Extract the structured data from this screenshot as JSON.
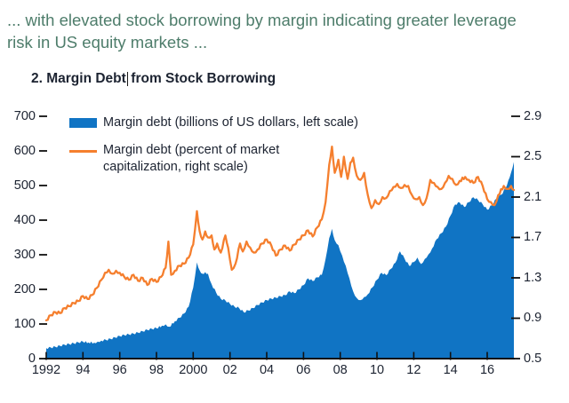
{
  "header": {
    "note_line1": "... with elevated stock borrowing by margin indicating greater leverage",
    "note_line2": "risk in US equity markets ..."
  },
  "figure": {
    "title_part1": "2. Margin Debt",
    "title_part2": "from Stock Borrowing"
  },
  "legend": {
    "items": [
      {
        "label": "Margin debt (billions of US dollars, left scale)",
        "swatch": "area",
        "color": "#1074c4"
      },
      {
        "label_line1": "Margin debt (percent of market",
        "label_line2": "capitalization, right scale)",
        "swatch": "line",
        "color": "#f57f2e"
      }
    ]
  },
  "colors": {
    "area_blue": "#1074c4",
    "line_orange": "#f57f2e",
    "axis_black": "#111111",
    "text_dark": "#1c2331",
    "note_green": "#4e7d6b"
  },
  "chart_data": {
    "type": "combo",
    "title": "2. Margin Debt from Stock Borrowing",
    "grid": "off",
    "legend_position": "top-left-inside",
    "x_axis": {
      "range": [
        1992,
        2017.45
      ],
      "tick_years": [
        1992,
        1994,
        1996,
        1998,
        2000,
        2002,
        2004,
        2006,
        2008,
        2010,
        2012,
        2014,
        2016
      ],
      "tick_labels": [
        "1992",
        "94",
        "96",
        "98",
        "2000",
        "02",
        "04",
        "06",
        "08",
        "10",
        "12",
        "14",
        "16"
      ]
    },
    "left_axis": {
      "range": [
        0,
        700
      ],
      "ticks": [
        0,
        100,
        200,
        300,
        400,
        500,
        600,
        700
      ]
    },
    "right_axis": {
      "range": [
        0.5,
        2.9
      ],
      "ticks": [
        0.5,
        0.9,
        1.3,
        1.7,
        2.1,
        2.5,
        2.9
      ]
    },
    "series": [
      {
        "name": "Margin debt (billions of US dollars, left scale)",
        "type": "area",
        "axis": "left",
        "color": "#1074c4",
        "points": [
          [
            1992.0,
            30
          ],
          [
            1992.25,
            32
          ],
          [
            1992.5,
            34
          ],
          [
            1992.75,
            37
          ],
          [
            1993.0,
            40
          ],
          [
            1993.25,
            42
          ],
          [
            1993.5,
            44
          ],
          [
            1993.75,
            47
          ],
          [
            1994.0,
            49
          ],
          [
            1994.3,
            47
          ],
          [
            1994.6,
            46
          ],
          [
            1994.8,
            49
          ],
          [
            1995.0,
            52
          ],
          [
            1995.25,
            54
          ],
          [
            1995.5,
            57
          ],
          [
            1995.75,
            61
          ],
          [
            1996.0,
            65
          ],
          [
            1996.25,
            68
          ],
          [
            1996.5,
            70
          ],
          [
            1996.75,
            72
          ],
          [
            1997.0,
            75
          ],
          [
            1997.25,
            79
          ],
          [
            1997.5,
            83
          ],
          [
            1997.75,
            86
          ],
          [
            1998.0,
            88
          ],
          [
            1998.3,
            95
          ],
          [
            1998.5,
            99
          ],
          [
            1998.7,
            92
          ],
          [
            1999.0,
            108
          ],
          [
            1999.25,
            118
          ],
          [
            1999.5,
            130
          ],
          [
            1999.75,
            150
          ],
          [
            2000.0,
            205
          ],
          [
            2000.2,
            278
          ],
          [
            2000.35,
            255
          ],
          [
            2000.5,
            245
          ],
          [
            2000.65,
            250
          ],
          [
            2000.8,
            245
          ],
          [
            2001.0,
            215
          ],
          [
            2001.25,
            190
          ],
          [
            2001.5,
            173
          ],
          [
            2001.75,
            168
          ],
          [
            2002.0,
            158
          ],
          [
            2002.25,
            150
          ],
          [
            2002.5,
            146
          ],
          [
            2002.75,
            134
          ],
          [
            2003.0,
            139
          ],
          [
            2003.25,
            146
          ],
          [
            2003.5,
            155
          ],
          [
            2003.75,
            162
          ],
          [
            2004.0,
            169
          ],
          [
            2004.25,
            173
          ],
          [
            2004.5,
            176
          ],
          [
            2004.75,
            180
          ],
          [
            2005.0,
            183
          ],
          [
            2005.25,
            194
          ],
          [
            2005.5,
            189
          ],
          [
            2005.75,
            200
          ],
          [
            2006.0,
            212
          ],
          [
            2006.25,
            232
          ],
          [
            2006.5,
            224
          ],
          [
            2006.75,
            235
          ],
          [
            2007.0,
            242
          ],
          [
            2007.2,
            288
          ],
          [
            2007.4,
            348
          ],
          [
            2007.55,
            375
          ],
          [
            2007.7,
            342
          ],
          [
            2007.9,
            328
          ],
          [
            2008.1,
            298
          ],
          [
            2008.3,
            268
          ],
          [
            2008.5,
            232
          ],
          [
            2008.7,
            194
          ],
          [
            2008.9,
            175
          ],
          [
            2009.1,
            169
          ],
          [
            2009.3,
            178
          ],
          [
            2009.5,
            186
          ],
          [
            2009.75,
            206
          ],
          [
            2010.0,
            228
          ],
          [
            2010.25,
            248
          ],
          [
            2010.5,
            241
          ],
          [
            2010.75,
            259
          ],
          [
            2011.0,
            277
          ],
          [
            2011.25,
            310
          ],
          [
            2011.5,
            289
          ],
          [
            2011.75,
            268
          ],
          [
            2012.0,
            279
          ],
          [
            2012.2,
            292
          ],
          [
            2012.4,
            273
          ],
          [
            2012.6,
            288
          ],
          [
            2012.8,
            301
          ],
          [
            2013.0,
            318
          ],
          [
            2013.25,
            345
          ],
          [
            2013.5,
            362
          ],
          [
            2013.75,
            381
          ],
          [
            2014.0,
            413
          ],
          [
            2014.25,
            445
          ],
          [
            2014.5,
            451
          ],
          [
            2014.75,
            438
          ],
          [
            2015.0,
            452
          ],
          [
            2015.25,
            466
          ],
          [
            2015.5,
            458
          ],
          [
            2015.75,
            446
          ],
          [
            2016.0,
            430
          ],
          [
            2016.25,
            443
          ],
          [
            2016.5,
            462
          ],
          [
            2016.75,
            473
          ],
          [
            2017.0,
            492
          ],
          [
            2017.15,
            515
          ],
          [
            2017.3,
            538
          ],
          [
            2017.45,
            568
          ]
        ]
      },
      {
        "name": "Margin debt (percent of market capitalization, right scale)",
        "type": "line",
        "axis": "right",
        "color": "#f57f2e",
        "points": [
          [
            1992.0,
            0.88
          ],
          [
            1992.25,
            0.93
          ],
          [
            1992.5,
            0.96
          ],
          [
            1992.75,
            0.95
          ],
          [
            1993.0,
            1.0
          ],
          [
            1993.25,
            1.02
          ],
          [
            1993.5,
            1.05
          ],
          [
            1993.75,
            1.07
          ],
          [
            1994.0,
            1.12
          ],
          [
            1994.25,
            1.09
          ],
          [
            1994.5,
            1.13
          ],
          [
            1994.75,
            1.2
          ],
          [
            1995.0,
            1.28
          ],
          [
            1995.2,
            1.35
          ],
          [
            1995.4,
            1.38
          ],
          [
            1995.6,
            1.34
          ],
          [
            1995.8,
            1.37
          ],
          [
            1996.0,
            1.35
          ],
          [
            1996.25,
            1.31
          ],
          [
            1996.5,
            1.28
          ],
          [
            1996.75,
            1.33
          ],
          [
            1997.0,
            1.27
          ],
          [
            1997.25,
            1.3
          ],
          [
            1997.5,
            1.23
          ],
          [
            1997.75,
            1.29
          ],
          [
            1998.0,
            1.26
          ],
          [
            1998.25,
            1.31
          ],
          [
            1998.5,
            1.4
          ],
          [
            1998.65,
            1.66
          ],
          [
            1998.8,
            1.33
          ],
          [
            1999.0,
            1.37
          ],
          [
            1999.25,
            1.42
          ],
          [
            1999.5,
            1.44
          ],
          [
            1999.75,
            1.5
          ],
          [
            2000.0,
            1.63
          ],
          [
            2000.2,
            1.96
          ],
          [
            2000.35,
            1.76
          ],
          [
            2000.5,
            1.68
          ],
          [
            2000.65,
            1.76
          ],
          [
            2000.8,
            1.7
          ],
          [
            2001.0,
            1.72
          ],
          [
            2001.15,
            1.58
          ],
          [
            2001.3,
            1.64
          ],
          [
            2001.5,
            1.55
          ],
          [
            2001.75,
            1.72
          ],
          [
            2001.9,
            1.6
          ],
          [
            2002.1,
            1.38
          ],
          [
            2002.3,
            1.44
          ],
          [
            2002.55,
            1.64
          ],
          [
            2002.7,
            1.56
          ],
          [
            2002.9,
            1.66
          ],
          [
            2003.1,
            1.6
          ],
          [
            2003.3,
            1.55
          ],
          [
            2003.5,
            1.58
          ],
          [
            2003.75,
            1.64
          ],
          [
            2004.0,
            1.68
          ],
          [
            2004.25,
            1.62
          ],
          [
            2004.5,
            1.52
          ],
          [
            2004.75,
            1.58
          ],
          [
            2005.0,
            1.62
          ],
          [
            2005.25,
            1.57
          ],
          [
            2005.5,
            1.63
          ],
          [
            2005.75,
            1.68
          ],
          [
            2006.0,
            1.72
          ],
          [
            2006.25,
            1.77
          ],
          [
            2006.5,
            1.71
          ],
          [
            2006.75,
            1.8
          ],
          [
            2007.0,
            1.88
          ],
          [
            2007.2,
            2.05
          ],
          [
            2007.4,
            2.42
          ],
          [
            2007.55,
            2.6
          ],
          [
            2007.7,
            2.34
          ],
          [
            2007.9,
            2.47
          ],
          [
            2008.05,
            2.3
          ],
          [
            2008.2,
            2.5
          ],
          [
            2008.4,
            2.28
          ],
          [
            2008.55,
            2.44
          ],
          [
            2008.7,
            2.49
          ],
          [
            2008.9,
            2.31
          ],
          [
            2009.1,
            2.27
          ],
          [
            2009.3,
            2.34
          ],
          [
            2009.5,
            2.12
          ],
          [
            2009.7,
            1.99
          ],
          [
            2009.9,
            2.07
          ],
          [
            2010.1,
            2.03
          ],
          [
            2010.3,
            2.1
          ],
          [
            2010.5,
            2.09
          ],
          [
            2010.7,
            2.16
          ],
          [
            2010.9,
            2.2
          ],
          [
            2011.1,
            2.23
          ],
          [
            2011.3,
            2.19
          ],
          [
            2011.5,
            2.22
          ],
          [
            2011.7,
            2.21
          ],
          [
            2011.9,
            2.12
          ],
          [
            2012.1,
            2.08
          ],
          [
            2012.3,
            2.1
          ],
          [
            2012.5,
            2.02
          ],
          [
            2012.7,
            2.09
          ],
          [
            2012.9,
            2.27
          ],
          [
            2013.1,
            2.24
          ],
          [
            2013.3,
            2.2
          ],
          [
            2013.5,
            2.18
          ],
          [
            2013.7,
            2.24
          ],
          [
            2013.9,
            2.31
          ],
          [
            2014.1,
            2.28
          ],
          [
            2014.3,
            2.22
          ],
          [
            2014.5,
            2.26
          ],
          [
            2014.8,
            2.3
          ],
          [
            2015.0,
            2.27
          ],
          [
            2015.25,
            2.24
          ],
          [
            2015.5,
            2.3
          ],
          [
            2015.75,
            2.21
          ],
          [
            2016.0,
            2.08
          ],
          [
            2016.2,
            2.05
          ],
          [
            2016.4,
            2.02
          ],
          [
            2016.6,
            2.12
          ],
          [
            2016.9,
            2.21
          ],
          [
            2017.1,
            2.18
          ],
          [
            2017.3,
            2.21
          ],
          [
            2017.45,
            2.17
          ]
        ]
      }
    ]
  }
}
